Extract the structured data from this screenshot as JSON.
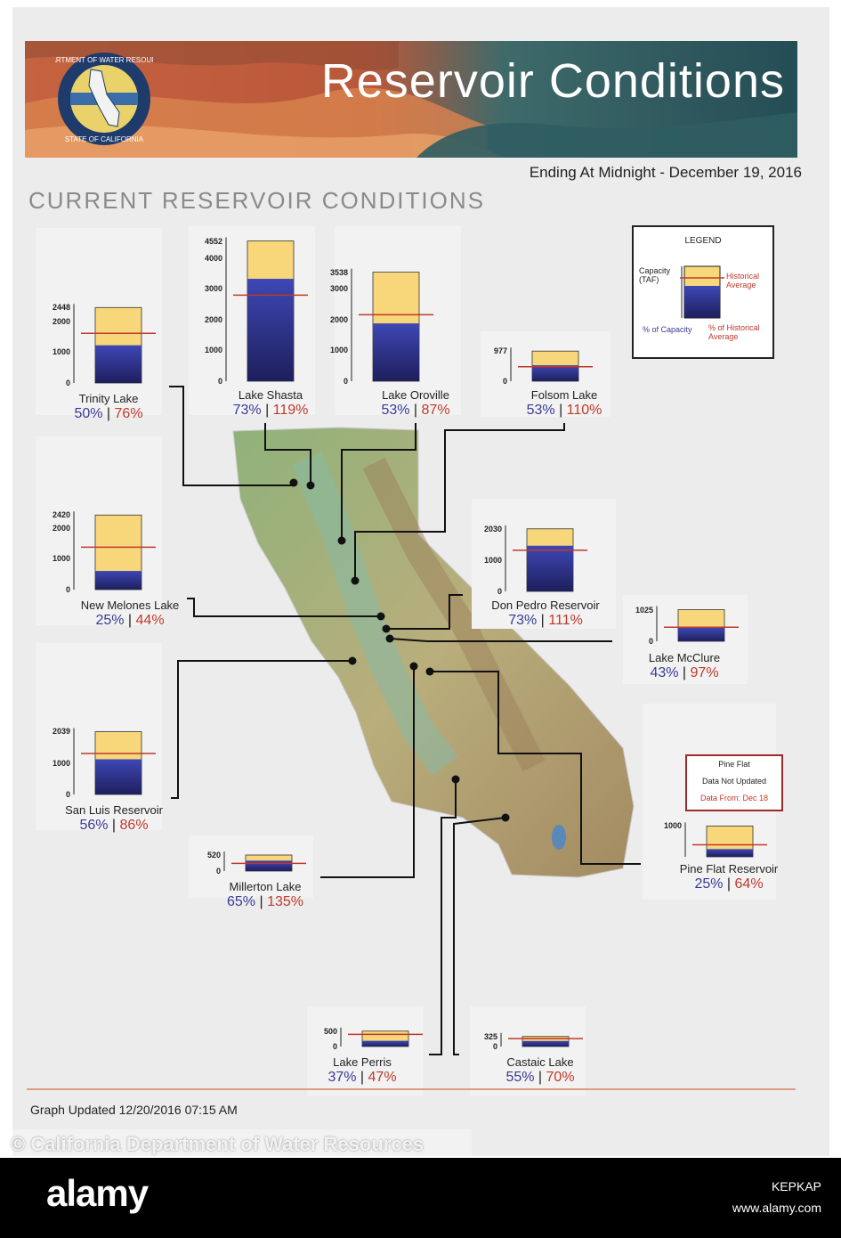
{
  "header": {
    "title": "Reservoir Conditions",
    "date_line": "Ending At Midnight - December 19, 2016",
    "section_title": "CURRENT RESERVOIR CONDITIONS",
    "seal_text_top": "DEPARTMENT OF WATER RESOURCES",
    "seal_text_bottom": "STATE OF CALIFORNIA"
  },
  "legend": {
    "title": "LEGEND",
    "capacity_label": "Capacity\n(TAF)",
    "historical_label": "Historical Average",
    "pct_capacity_label": "% of Capacity",
    "pct_historical_label": "% of Historical Average"
  },
  "pine_flat_notice": {
    "line1": "Pine Flat",
    "line2": "Data Not Updated",
    "line3": "Data From: Dec 18"
  },
  "footer": {
    "updated": "Graph Updated 12/20/2016 07:15 AM",
    "credit": "© California Department of Water Resources",
    "stock_logo": "alamy",
    "stock_id": "KEPKAP",
    "stock_site": "www.alamy.com"
  },
  "colors": {
    "capacity_fill": "#f7d77a",
    "storage_top": "#3e47b5",
    "storage_bottom": "#1e1f5c",
    "historical_line": "#c0392b",
    "pct_capacity": "#3a3a9a",
    "pct_historical": "#c0392b"
  },
  "chart_data": {
    "type": "bar",
    "units": "TAF",
    "reservoirs": [
      {
        "name": "Trinity Lake",
        "capacity": 2448,
        "ticks": [
          0,
          1000,
          2000,
          2448
        ],
        "pct_capacity": 50,
        "pct_historical": 76,
        "pct_capacity_text": "50%",
        "pct_historical_text": "76%"
      },
      {
        "name": "Lake Shasta",
        "capacity": 4552,
        "ticks": [
          0,
          1000,
          2000,
          3000,
          4000,
          4552
        ],
        "pct_capacity": 73,
        "pct_historical": 119,
        "pct_capacity_text": "73%",
        "pct_historical_text": "119%"
      },
      {
        "name": "Lake Oroville",
        "capacity": 3538,
        "ticks": [
          0,
          1000,
          2000,
          3000,
          3538
        ],
        "pct_capacity": 53,
        "pct_historical": 87,
        "pct_capacity_text": "53%",
        "pct_historical_text": "87%"
      },
      {
        "name": "Folsom Lake",
        "capacity": 977,
        "ticks": [
          0,
          977
        ],
        "pct_capacity": 53,
        "pct_historical": 110,
        "pct_capacity_text": "53%",
        "pct_historical_text": "110%"
      },
      {
        "name": "New Melones Lake",
        "capacity": 2420,
        "ticks": [
          0,
          1000,
          2000,
          2420
        ],
        "pct_capacity": 25,
        "pct_historical": 44,
        "pct_capacity_text": "25%",
        "pct_historical_text": "44%"
      },
      {
        "name": "Don Pedro Reservoir",
        "capacity": 2030,
        "ticks": [
          0,
          1000,
          2030
        ],
        "pct_capacity": 73,
        "pct_historical": 111,
        "pct_capacity_text": "73%",
        "pct_historical_text": "111%"
      },
      {
        "name": "Lake McClure",
        "capacity": 1025,
        "ticks": [
          0,
          1025
        ],
        "pct_capacity": 43,
        "pct_historical": 97,
        "pct_capacity_text": "43%",
        "pct_historical_text": "97%"
      },
      {
        "name": "San Luis Reservoir",
        "capacity": 2039,
        "ticks": [
          0,
          1000,
          2039
        ],
        "pct_capacity": 56,
        "pct_historical": 86,
        "pct_capacity_text": "56%",
        "pct_historical_text": "86%"
      },
      {
        "name": "Millerton Lake",
        "capacity": 520,
        "ticks": [
          0,
          520
        ],
        "pct_capacity": 65,
        "pct_historical": 135,
        "pct_capacity_text": "65%",
        "pct_historical_text": "135%"
      },
      {
        "name": "Pine Flat Reservoir",
        "capacity": 1000,
        "ticks": [
          1000
        ],
        "pct_capacity": 25,
        "pct_historical": 64,
        "pct_capacity_text": "25%",
        "pct_historical_text": "64%"
      },
      {
        "name": "Lake Perris",
        "capacity": 500,
        "ticks": [
          0,
          500
        ],
        "pct_capacity": 37,
        "pct_historical": 47,
        "pct_capacity_text": "37%",
        "pct_historical_text": "47%"
      },
      {
        "name": "Castaic Lake",
        "capacity": 325,
        "ticks": [
          0,
          325
        ],
        "pct_capacity": 55,
        "pct_historical": 70,
        "pct_capacity_text": "55%",
        "pct_historical_text": "70%"
      }
    ]
  }
}
